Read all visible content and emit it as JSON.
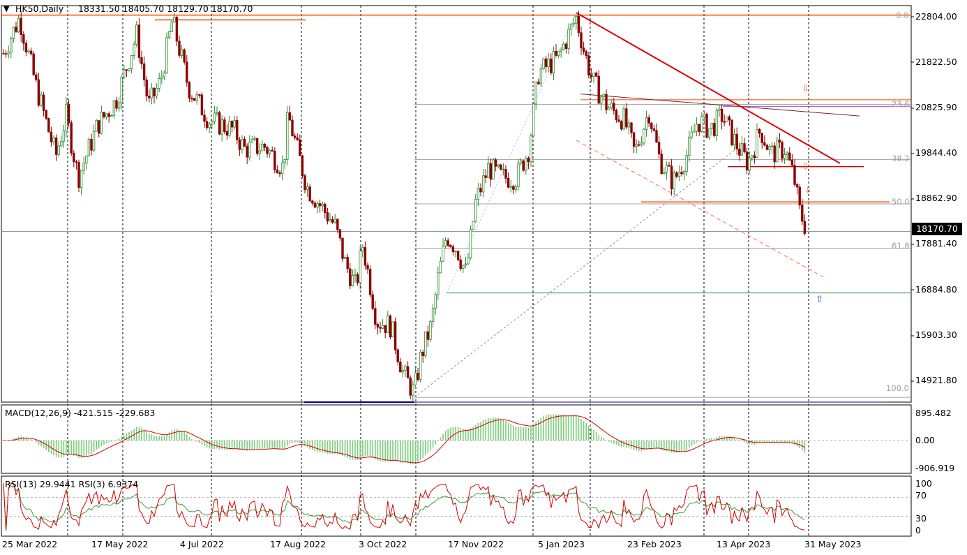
{
  "header": {
    "symbol": "HK50,Daily",
    "ohlc": "18331.50 18405.70 18129.70 18170.70"
  },
  "macd": {
    "title": "MACD(12,26,9) -421.515 -229.683"
  },
  "rsi": {
    "title": "RSI(13) 29.9441  RSI(3) 6.9374"
  },
  "current_price": "18170.70",
  "price_axis": [
    "22804.00",
    "21822.50",
    "20825.90",
    "19844.40",
    "18862.90",
    "17881.40",
    "16884.80",
    "15903.30",
    "14921.80"
  ],
  "macd_axis": [
    "895.482",
    "0.00",
    "-906.919"
  ],
  "rsi_axis": [
    "100",
    "70",
    "30",
    "0"
  ],
  "date_axis": [
    "25 Mar 2022",
    "17 May 2022",
    "4 Jul 2022",
    "17 Aug 2022",
    "3 Oct 2022",
    "17 Nov 2022",
    "5 Jan 2023",
    "23 Feb 2023",
    "13 Apr 2023",
    "31 May 2023"
  ],
  "fib_levels": [
    "0.0",
    "23.6",
    "38.2",
    "50.0",
    "61.8",
    "100.0"
  ],
  "colors": {
    "bull": "#2e8b2e",
    "bear": "#8b0000",
    "trend": "#e00000",
    "hline": "#ff4500",
    "support": "#2e8b57",
    "bottom": "#00008b",
    "macd_hist": "#7ccd7c",
    "rsi13": "#3a9a3a",
    "rsi3": "#d40000"
  },
  "icons": {
    "down_arrow": "⇩",
    "up_arrow": "⇧",
    "menu": "triangle-down-icon"
  },
  "chart_data": {
    "type": "candlestick",
    "symbol": "HK50",
    "timeframe": "Daily",
    "ylim": [
      14600,
      22900
    ],
    "x": [
      "2022-03-25",
      "2023-06-15"
    ],
    "key_points": [
      {
        "label": "high Mar 2022",
        "value": 22700
      },
      {
        "label": "high Jun 2022",
        "value": 22600
      },
      {
        "label": "low Oct 2022",
        "value": 14700
      },
      {
        "label": "high Jan 2023",
        "value": 22700
      },
      {
        "label": "close",
        "value": 18170.7
      }
    ],
    "fibonacci": [
      {
        "level": "0.0",
        "value": 22700
      },
      {
        "level": "23.6",
        "value": 20830
      },
      {
        "level": "38.2",
        "value": 19680
      },
      {
        "level": "50.0",
        "value": 18750
      },
      {
        "level": "61.8",
        "value": 17820
      },
      {
        "level": "100.0",
        "value": 14700
      }
    ],
    "horizontal_levels": [
      22700,
      20930,
      19530,
      18790,
      16884.8,
      14600
    ],
    "macd": {
      "params": "12,26,9",
      "main": -421.515,
      "signal": -229.683,
      "range": [
        -906.919,
        895.482
      ]
    },
    "rsi": {
      "rsi13": 29.9441,
      "rsi3": 6.9374,
      "levels": [
        70,
        30
      ]
    }
  }
}
